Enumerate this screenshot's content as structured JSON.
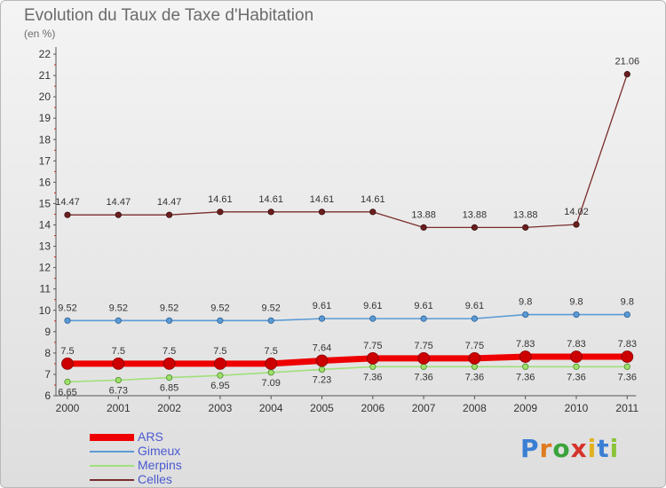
{
  "title": "Evolution du Taux de Taxe d'Habitation",
  "subtitle": "(en %)",
  "logo": {
    "text": "Proxiti",
    "letters": [
      "P",
      "r",
      "o",
      "x",
      "i",
      "t",
      "i"
    ],
    "colors": [
      "#3b7fd4",
      "#e07a1f",
      "#3aa33a",
      "#d4332c",
      "#e0b21f",
      "#3b7fd4",
      "#8ac43a"
    ]
  },
  "colors": {
    "ARS": "#ee0000",
    "Gimeux": "#5b9bd5",
    "Merpins": "#a0e07a",
    "Celles": "#7b2d2d"
  },
  "chart_data": {
    "type": "line",
    "title": "Evolution du Taux de Taxe d'Habitation",
    "ylabel": "(en %)",
    "xlabel": "",
    "x": [
      "2000",
      "2001",
      "2002",
      "2003",
      "2004",
      "2005",
      "2006",
      "2007",
      "2008",
      "2009",
      "2010",
      "2011"
    ],
    "ylim": [
      6,
      22
    ],
    "yticks": [
      6,
      7,
      8,
      9,
      10,
      11,
      12,
      13,
      14,
      15,
      16,
      17,
      18,
      19,
      20,
      21,
      22
    ],
    "grid": false,
    "legend": "bottom-left",
    "series": [
      {
        "name": "ARS",
        "values": [
          7.5,
          7.5,
          7.5,
          7.5,
          7.5,
          7.64,
          7.75,
          7.75,
          7.75,
          7.83,
          7.83,
          7.83
        ],
        "labels": [
          "7.5",
          "7.5",
          "7.5",
          "7.5",
          "7.5",
          "7.64",
          "7.75",
          "7.75",
          "7.75",
          "7.83",
          "7.83",
          "7.83"
        ]
      },
      {
        "name": "Gimeux",
        "values": [
          9.52,
          9.52,
          9.52,
          9.52,
          9.52,
          9.61,
          9.61,
          9.61,
          9.61,
          9.8,
          9.8,
          9.8
        ],
        "labels": [
          "9.52",
          "9.52",
          "9.52",
          "9.52",
          "9.52",
          "9.61",
          "9.61",
          "9.61",
          "9.61",
          "9.8",
          "9.8",
          "9.8"
        ]
      },
      {
        "name": "Merpins",
        "values": [
          6.65,
          6.73,
          6.85,
          6.95,
          7.09,
          7.23,
          7.36,
          7.36,
          7.36,
          7.36,
          7.36,
          7.36
        ],
        "labels": [
          "6.65",
          "6.73",
          "6.85",
          "6.95",
          "7.09",
          "7.23",
          "7.36",
          "7.36",
          "7.36",
          "7.36",
          "7.36",
          "7.36"
        ]
      },
      {
        "name": "Celles",
        "values": [
          14.47,
          14.47,
          14.47,
          14.61,
          14.61,
          14.61,
          14.61,
          13.88,
          13.88,
          13.88,
          14.02,
          21.06
        ],
        "labels": [
          "14.47",
          "14.47",
          "14.47",
          "14.61",
          "14.61",
          "14.61",
          "14.61",
          "13.88",
          "13.88",
          "13.88",
          "14.02",
          "21.06"
        ]
      }
    ]
  }
}
